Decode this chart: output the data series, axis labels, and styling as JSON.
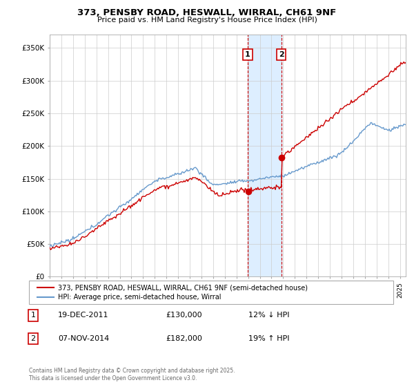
{
  "title": "373, PENSBY ROAD, HESWALL, WIRRAL, CH61 9NF",
  "subtitle": "Price paid vs. HM Land Registry's House Price Index (HPI)",
  "ylabel_ticks": [
    "£0",
    "£50K",
    "£100K",
    "£150K",
    "£200K",
    "£250K",
    "£300K",
    "£350K"
  ],
  "ytick_values": [
    0,
    50000,
    100000,
    150000,
    200000,
    250000,
    300000,
    350000
  ],
  "ylim": [
    0,
    370000
  ],
  "xlim_start": 1995.0,
  "xlim_end": 2025.5,
  "sale1_date": 2011.96,
  "sale1_price": 130000,
  "sale2_date": 2014.85,
  "sale2_price": 182000,
  "legend_line1": "373, PENSBY ROAD, HESWALL, WIRRAL, CH61 9NF (semi-detached house)",
  "legend_line2": "HPI: Average price, semi-detached house, Wirral",
  "footnote": "Contains HM Land Registry data © Crown copyright and database right 2025.\nThis data is licensed under the Open Government Licence v3.0.",
  "hpi_color": "#6699cc",
  "price_color": "#cc0000",
  "shade_color": "#ddeeff",
  "background_color": "#ffffff",
  "grid_color": "#cccccc",
  "table_rows": [
    {
      "num": "1",
      "date": "19-DEC-2011",
      "price": "£130,000",
      "hpi": "12% ↓ HPI"
    },
    {
      "num": "2",
      "date": "07-NOV-2014",
      "price": "£182,000",
      "hpi": "19% ↑ HPI"
    }
  ]
}
